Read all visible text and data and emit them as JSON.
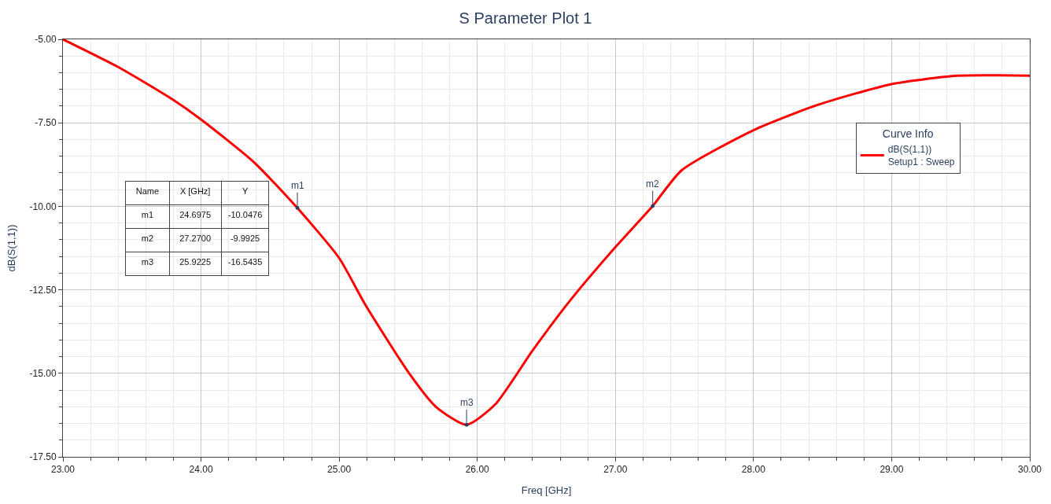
{
  "chart_data": {
    "type": "line",
    "title": "S Parameter Plot 1",
    "xlabel": "Freq [GHz]",
    "ylabel": "dB(S(1,1))",
    "legend_title": "Curve Info",
    "series": [
      {
        "name": "dB(S(1,1))\nSetup1 : Sweep",
        "color": "#ff0000",
        "x": [
          23,
          23.4,
          23.79,
          24,
          24.38,
          24.6975,
          25,
          25.19,
          25.5,
          25.7,
          25.9225,
          26.13,
          26.4,
          26.67,
          27,
          27.27,
          27.48,
          28,
          28.46,
          29,
          29.48,
          30
        ],
        "values": [
          -5.0,
          -5.83,
          -6.79,
          -7.4,
          -8.67,
          -10.05,
          -11.55,
          -12.95,
          -14.96,
          -16.0,
          -16.54,
          -15.93,
          -14.32,
          -12.83,
          -11.22,
          -9.99,
          -8.92,
          -7.72,
          -6.97,
          -6.34,
          -6.09,
          -6.09
        ]
      }
    ],
    "xlim": [
      23,
      30
    ],
    "ylim": [
      -17.5,
      -5
    ],
    "xticks": [
      {
        "value": 23,
        "label": "23.00"
      },
      {
        "value": 24,
        "label": "24.00"
      },
      {
        "value": 25,
        "label": "25.00"
      },
      {
        "value": 26,
        "label": "26.00"
      },
      {
        "value": 27,
        "label": "27.00"
      },
      {
        "value": 28,
        "label": "28.00"
      },
      {
        "value": 29,
        "label": "29.00"
      },
      {
        "value": 30,
        "label": "30.00"
      }
    ],
    "yticks": [
      {
        "value": -17.5,
        "label": "-17.50"
      },
      {
        "value": -15,
        "label": "-15.00"
      },
      {
        "value": -12.5,
        "label": "-12.50"
      },
      {
        "value": -10,
        "label": "-10.00"
      },
      {
        "value": -7.5,
        "label": "-7.50"
      },
      {
        "value": -5,
        "label": "-5.00"
      }
    ],
    "grid": true,
    "legend": "top right",
    "marker": "none",
    "line_style": "solid",
    "annotations": [
      {
        "text": "m1",
        "x": 24.6975,
        "y": -10.0476
      },
      {
        "text": "m2",
        "x": 27.27,
        "y": -9.9925
      },
      {
        "text": "m3",
        "x": 25.9225,
        "y": -16.5435
      },
      "Name",
      "X [GHz]",
      "Y",
      "m1",
      "24.6975",
      "-10.0476",
      "m2",
      "27.2700",
      "-9.9925",
      "m3",
      "25.9225",
      "-16.5435"
    ]
  }
}
